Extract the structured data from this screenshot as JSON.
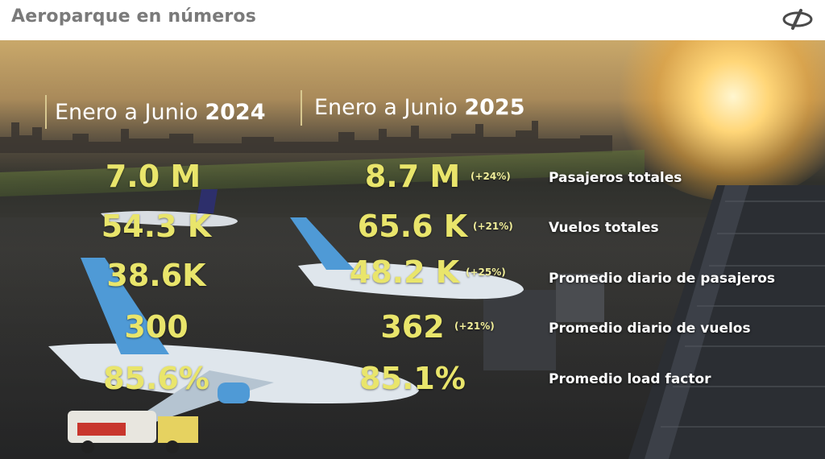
{
  "header": {
    "title": "Aeroparque en números",
    "logo_icon": "airline-logo-icon"
  },
  "columns": [
    {
      "prefix": "Enero a Junio",
      "year": "2024"
    },
    {
      "prefix": "Enero a Junio",
      "year": "2025"
    }
  ],
  "metrics": [
    {
      "label": "Pasajeros totales",
      "v2024": "7.0 M",
      "v2025": "8.7 M",
      "change": "(+24%)"
    },
    {
      "label": "Vuelos totales",
      "v2024": "54.3 K",
      "v2025": "65.6 K",
      "change": "(+21%)"
    },
    {
      "label": "Promedio diario de pasajeros",
      "v2024": "38.6K",
      "v2025": "48.2 K",
      "change": "(+25%)"
    },
    {
      "label": "Promedio diario de vuelos",
      "v2024": "300",
      "v2025": "362",
      "change": "(+21%)"
    },
    {
      "label": "Promedio load factor",
      "v2024": "85.6%",
      "v2025": "85.1%",
      "change": ""
    }
  ],
  "colors": {
    "value_yellow": "#e9e56b",
    "title_gray": "#7a7a7a",
    "label_white": "#ffffff"
  }
}
